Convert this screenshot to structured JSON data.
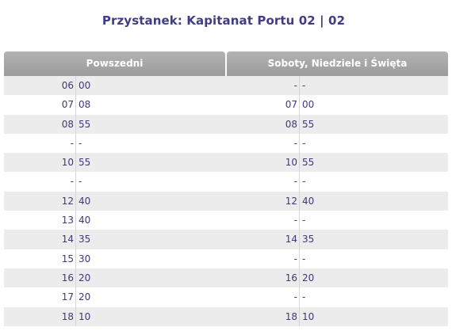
{
  "stop_title": "Przystanek: Kapitanat Portu 02 | 02",
  "columns": [
    "Powszedni",
    "Soboty, Niedziele i Święta"
  ],
  "rows": [
    {
      "weekday": {
        "hour": "06",
        "minute": "00"
      },
      "holiday": {
        "hour": "-",
        "minute": "-"
      }
    },
    {
      "weekday": {
        "hour": "07",
        "minute": "08"
      },
      "holiday": {
        "hour": "07",
        "minute": "00"
      }
    },
    {
      "weekday": {
        "hour": "08",
        "minute": "55"
      },
      "holiday": {
        "hour": "08",
        "minute": "55"
      }
    },
    {
      "weekday": {
        "hour": "-",
        "minute": "-"
      },
      "holiday": {
        "hour": "-",
        "minute": "-"
      }
    },
    {
      "weekday": {
        "hour": "10",
        "minute": "55"
      },
      "holiday": {
        "hour": "10",
        "minute": "55"
      }
    },
    {
      "weekday": {
        "hour": "-",
        "minute": "-"
      },
      "holiday": {
        "hour": "-",
        "minute": "-"
      }
    },
    {
      "weekday": {
        "hour": "12",
        "minute": "40"
      },
      "holiday": {
        "hour": "12",
        "minute": "40"
      }
    },
    {
      "weekday": {
        "hour": "13",
        "minute": "40"
      },
      "holiday": {
        "hour": "-",
        "minute": "-"
      }
    },
    {
      "weekday": {
        "hour": "14",
        "minute": "35"
      },
      "holiday": {
        "hour": "14",
        "minute": "35"
      }
    },
    {
      "weekday": {
        "hour": "15",
        "minute": "30"
      },
      "holiday": {
        "hour": "-",
        "minute": "-"
      }
    },
    {
      "weekday": {
        "hour": "16",
        "minute": "20"
      },
      "holiday": {
        "hour": "16",
        "minute": "20"
      }
    },
    {
      "weekday": {
        "hour": "17",
        "minute": "20"
      },
      "holiday": {
        "hour": "-",
        "minute": "-"
      }
    },
    {
      "weekday": {
        "hour": "18",
        "minute": "10"
      },
      "holiday": {
        "hour": "18",
        "minute": "10"
      }
    }
  ],
  "colors": {
    "title": "#403c85",
    "header_bg": "#a8a8a8",
    "row_stripe": "#ececec",
    "cell_text": "#3c3a78"
  }
}
